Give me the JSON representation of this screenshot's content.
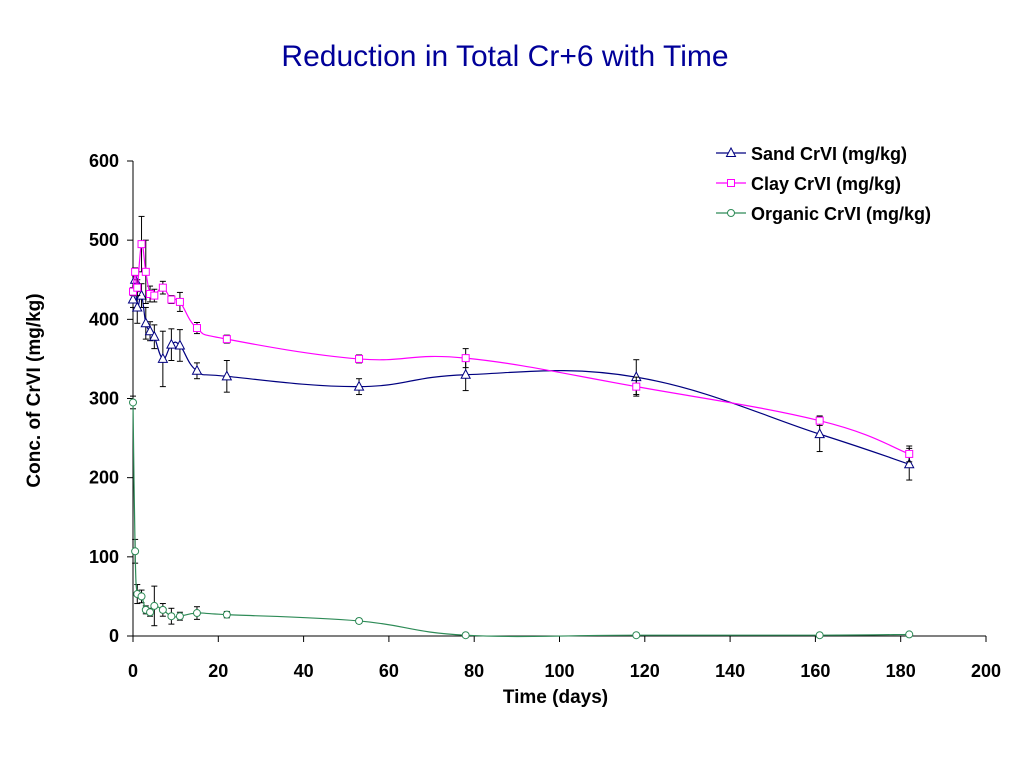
{
  "chart_data": {
    "type": "line",
    "title": "Reduction in Total Cr+6 with Time",
    "xlabel": "Time (days)",
    "ylabel": "Conc. of CrVI (mg/kg)",
    "xlim": [
      0,
      200
    ],
    "ylim": [
      0,
      600
    ],
    "xticks": [
      0,
      20,
      40,
      60,
      80,
      100,
      120,
      140,
      160,
      180,
      200
    ],
    "yticks": [
      0,
      100,
      200,
      300,
      400,
      500,
      600
    ],
    "grid": false,
    "legend": "top-right",
    "series": [
      {
        "name": "Sand CrVI (mg/kg)",
        "color": "#000080",
        "marker": "triangle",
        "points": [
          [
            0,
            425
          ],
          [
            0.5,
            450
          ],
          [
            1,
            415
          ],
          [
            2,
            430
          ],
          [
            3,
            395
          ],
          [
            4,
            385
          ],
          [
            5,
            378
          ],
          [
            7,
            350
          ],
          [
            9,
            368
          ],
          [
            11,
            367
          ],
          [
            15,
            335
          ],
          [
            22,
            328
          ],
          [
            53,
            315
          ],
          [
            78,
            330
          ],
          [
            118,
            327
          ],
          [
            161,
            255
          ],
          [
            182,
            217
          ]
        ],
        "errors": [
          10,
          8,
          20,
          15,
          20,
          12,
          15,
          35,
          20,
          20,
          10,
          20,
          10,
          20,
          22,
          22,
          20
        ]
      },
      {
        "name": "Clay CrVI (mg/kg)",
        "color": "#ff00ff",
        "marker": "square",
        "points": [
          [
            0,
            435
          ],
          [
            0.5,
            460
          ],
          [
            1,
            440
          ],
          [
            2,
            495
          ],
          [
            3,
            460
          ],
          [
            4,
            432
          ],
          [
            5,
            430
          ],
          [
            7,
            440
          ],
          [
            9,
            425
          ],
          [
            11,
            422
          ],
          [
            15,
            389
          ],
          [
            22,
            375
          ],
          [
            53,
            350
          ],
          [
            78,
            351
          ],
          [
            118,
            315
          ],
          [
            161,
            272
          ],
          [
            182,
            230
          ]
        ],
        "errors": [
          5,
          5,
          10,
          35,
          40,
          10,
          8,
          8,
          5,
          12,
          7,
          5,
          5,
          12,
          12,
          6,
          10
        ]
      },
      {
        "name": "Organic CrVI (mg/kg)",
        "color": "#2e8b57",
        "marker": "circle",
        "points": [
          [
            0,
            295
          ],
          [
            0.5,
            107
          ],
          [
            1,
            53
          ],
          [
            2,
            50
          ],
          [
            3,
            33
          ],
          [
            4,
            30
          ],
          [
            5,
            38
          ],
          [
            7,
            33
          ],
          [
            9,
            25
          ],
          [
            11,
            25
          ],
          [
            15,
            29
          ],
          [
            22,
            27
          ],
          [
            53,
            19
          ],
          [
            78,
            1
          ],
          [
            118,
            1
          ],
          [
            161,
            1
          ],
          [
            182,
            2
          ]
        ],
        "errors": [
          8,
          15,
          12,
          8,
          5,
          5,
          25,
          8,
          10,
          5,
          8,
          4,
          3,
          1,
          1,
          1,
          1
        ]
      }
    ]
  }
}
